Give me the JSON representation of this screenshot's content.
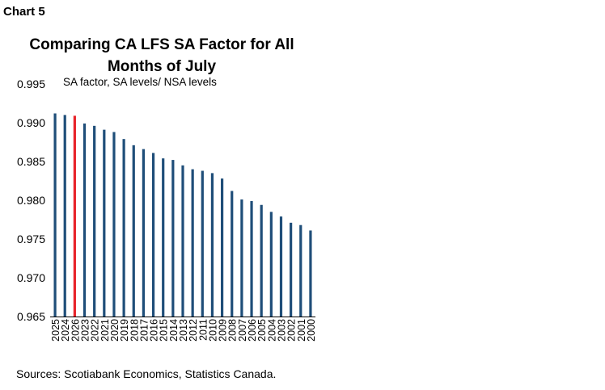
{
  "header": {
    "chart_label": "Chart 5"
  },
  "footer": {
    "source": "Sources: Scotiabank Economics, Statistics Canada."
  },
  "colors": {
    "bar": "#1f4e79",
    "highlight": "#e8242b",
    "axis": "#000000"
  },
  "chart_data": {
    "type": "bar",
    "title": "Comparing CA LFS SA Factor for All Months of July",
    "annotation": "SA factor, SA levels/ NSA levels",
    "xlabel": "",
    "ylabel": "",
    "ylim": [
      0.965,
      0.995
    ],
    "yticks": [
      "0.965",
      "0.970",
      "0.975",
      "0.980",
      "0.985",
      "0.990",
      "0.995"
    ],
    "grid": false,
    "highlight_category": "2026",
    "categories": [
      "2025",
      "2024",
      "2026",
      "2023",
      "2022",
      "2021",
      "2020",
      "2019",
      "2018",
      "2017",
      "2016",
      "2015",
      "2014",
      "2013",
      "2012",
      "2011",
      "2010",
      "2009",
      "2008",
      "2007",
      "2006",
      "2005",
      "2004",
      "2003",
      "2002",
      "2001",
      "2000"
    ],
    "values": [
      0.9912,
      0.991,
      0.9909,
      0.9899,
      0.9896,
      0.9891,
      0.9888,
      0.9879,
      0.9871,
      0.9866,
      0.9861,
      0.9854,
      0.9852,
      0.9845,
      0.984,
      0.9838,
      0.9835,
      0.9828,
      0.9812,
      0.9801,
      0.9799,
      0.9794,
      0.9785,
      0.9779,
      0.9771,
      0.9768,
      0.9761
    ]
  }
}
